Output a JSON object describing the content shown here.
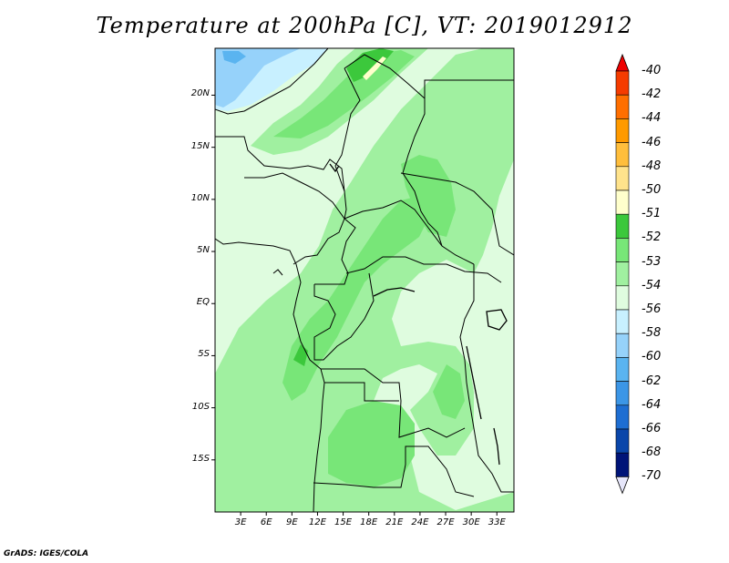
{
  "title": "Temperature at 200hPa [C], VT: 2019012912",
  "credit": "GrADS: IGES/COLA",
  "lat_labels": [
    "20N",
    "15N",
    "10N",
    "5N",
    "EQ",
    "5S",
    "10S",
    "15S"
  ],
  "lat_values": [
    20,
    15,
    10,
    5,
    0,
    -5,
    -10,
    -15
  ],
  "lon_labels": [
    "3E",
    "6E",
    "9E",
    "12E",
    "15E",
    "18E",
    "21E",
    "24E",
    "27E",
    "30E",
    "33E"
  ],
  "lon_values": [
    3,
    6,
    9,
    12,
    15,
    18,
    21,
    24,
    27,
    30,
    33
  ],
  "map_extent": {
    "lon_min": 0,
    "lon_max": 35,
    "lat_min": -20,
    "lat_max": 24.5
  },
  "colorbar": {
    "labels": [
      "-40",
      "-42",
      "-44",
      "-46",
      "-48",
      "-50",
      "-51",
      "-52",
      "-53",
      "-54",
      "-56",
      "-58",
      "-60",
      "-62",
      "-64",
      "-66",
      "-68",
      "-70"
    ],
    "colors": [
      "#ee0000",
      "#f53c00",
      "#ff6f00",
      "#ff9a00",
      "#ffbe3c",
      "#ffe38c",
      "#ffffcc",
      "#3cc83c",
      "#78e678",
      "#a0f0a0",
      "#dffcdf",
      "#c8f0ff",
      "#96d2fa",
      "#5ab4f0",
      "#3c96e6",
      "#1e6ed2",
      "#0a46aa",
      "#001478",
      "#e6e6fa"
    ]
  },
  "field_colors": {
    "band_-51": "#3cc83c",
    "band_-52": "#78e678",
    "band_-53": "#a0f0a0",
    "band_-54": "#dffcdf",
    "band_-56": "#c8f0ff",
    "band_-58": "#96d2fa",
    "band_-60": "#5ab4f0",
    "band_-50": "#ffffcc"
  }
}
